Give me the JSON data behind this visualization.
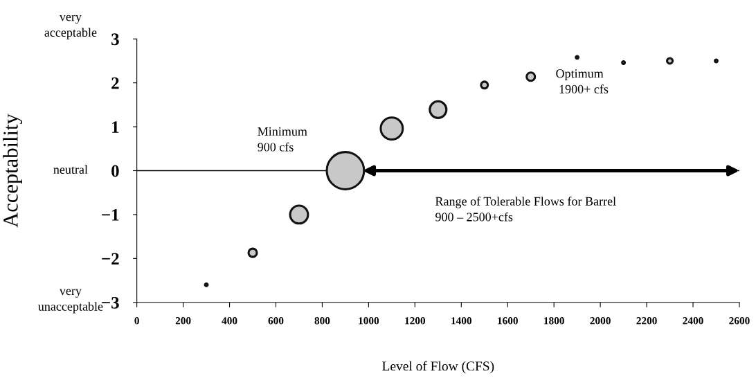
{
  "chart_data": {
    "type": "bubble",
    "xlabel": "Level of Flow (CFS)",
    "ylabel": "Acceptability",
    "x": [
      300,
      500,
      700,
      900,
      1100,
      1300,
      1500,
      1700,
      1900,
      2100,
      2300,
      2500
    ],
    "values": [
      -2.6,
      -1.87,
      -1.0,
      0,
      0.96,
      1.39,
      1.95,
      2.14,
      2.58,
      2.46,
      2.5,
      2.5
    ],
    "sizes": [
      0.005,
      0.05,
      0.23,
      1,
      0.35,
      0.2,
      0.034,
      0.05,
      0.005,
      0.005,
      0.022,
      0.005
    ],
    "color": "#c8c8c8",
    "xlim": [
      0,
      2600
    ],
    "xticks": [
      0,
      200,
      400,
      600,
      800,
      1000,
      1200,
      1400,
      1600,
      1800,
      2000,
      2200,
      2400,
      2600
    ],
    "ylim": [
      -3,
      3
    ],
    "yticks": [
      -3,
      -2,
      -1,
      0,
      1,
      2,
      3
    ],
    "ref_lines": [
      {
        "axis": "y",
        "value": 0,
        "color": "#000000"
      }
    ],
    "annotations": [
      "very\nacceptable",
      "neutral",
      "very\nunacceptable",
      "Minimum\n900 cfs",
      "Optimum\n 1900+ cfs",
      "Range of Tolerable Flows for Barrel\n900 – 2500+cfs"
    ],
    "grid": false,
    "legend": false
  }
}
